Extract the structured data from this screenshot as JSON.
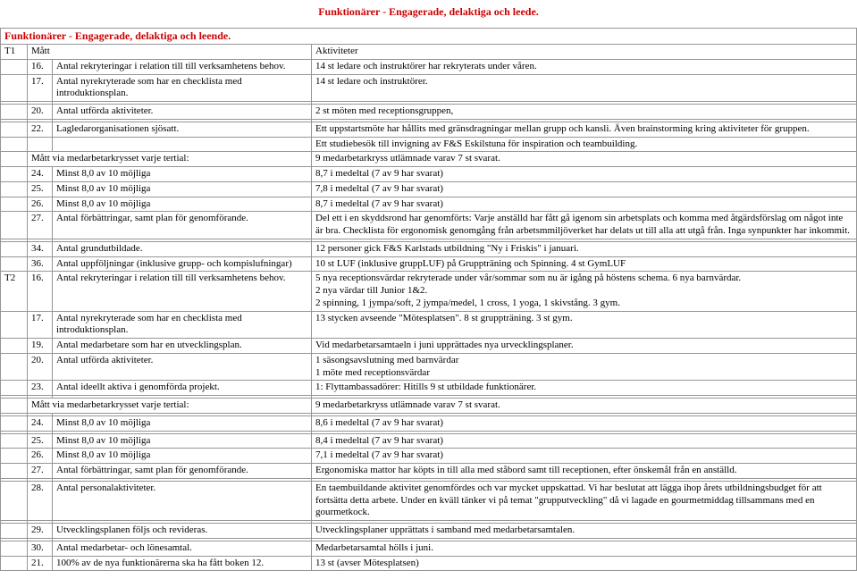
{
  "page_title": "Funktionärer - Engagerade, delaktiga och leede.",
  "section_header": "Funktionärer - Engagerade, delaktiga och leende.",
  "t_labels": {
    "t1": "T1",
    "t2": "T2"
  },
  "headers": {
    "matt": "Mått",
    "aktiviteter": "Aktiviteter"
  },
  "rows": {
    "r16": {
      "n": "16.",
      "m": "Antal rekryteringar i relation till till verksamhetens behov.",
      "a": "14 st  ledare och instruktörer har rekryterats under våren."
    },
    "r17": {
      "n": "17.",
      "m": "Antal nyrekryterade som har en checklista med introduktionsplan.",
      "a": "14 st  ledare och instruktörer."
    },
    "r20": {
      "n": "20.",
      "m": "Antal utförda aktiviteter.",
      "a": "2 st möten med receptionsgruppen,"
    },
    "r22": {
      "n": "22.",
      "m": "Lagledarorganisationen sjösatt.",
      "a": "Ett uppstartsmöte har hållits med gränsdragningar mellan grupp och kansli. Även brainstorming kring aktiviteter för gruppen."
    },
    "r22b": {
      "a": "Ett studiebesök till invigning av F&S Eskilstuna för inspiration och teambuilding."
    },
    "rMt1": {
      "m": "Mått via medarbetarkrysset varje tertial:",
      "a": "9 medarbetarkryss utlämnade varav 7 st svarat."
    },
    "r24a": {
      "n": "24.",
      "m": "Minst 8,0 av 10 möjliga",
      "a": "8,7 i medeltal (7 av 9 har svarat)"
    },
    "r25a": {
      "n": "25.",
      "m": "Minst 8,0 av 10 möjliga",
      "a": "7,8 i medeltal (7 av 9 har svarat)"
    },
    "r26a": {
      "n": "26.",
      "m": "Minst 8,0 av 10 möjliga",
      "a": "8,7 i medeltal (7 av 9 har svarat)"
    },
    "r27a": {
      "n": "27.",
      "m": "Antal förbättringar, samt plan för genomförande.",
      "a": "Del ett i en skyddsrond har genomförts: Varje anställd har fått gå igenom sin arbetsplats och komma med åtgärdsförslag om något inte är bra. Checklista för ergonomisk genomgång från arbetsmmiljöverket har delats ut till alla att utgå från. Inga synpunkter har inkommit."
    },
    "r34": {
      "n": "34.",
      "m": "Antal grundutbildade.",
      "a": "12 personer gick F&S Karlstads utbildning \"Ny i Friskis\" i januari."
    },
    "r36": {
      "n": "36.",
      "m": "Antal uppföljningar (inklusive grupp- och kompislufningar)",
      "a": "10 st LUF (inklusive gruppLUF) på Gruppträning och Spinning. 4 st GymLUF"
    },
    "r16b": {
      "n": "16.",
      "m": "Antal rekryteringar i relation till till verksamhetens behov.",
      "a": "5 nya receptionsvärdar rekryterade under vår/sommar som nu är igång på höstens schema. 6 nya barnvärdar.\n2 nya värdar till Junior 1&2.\n2 spinning, 1 jympa/soft, 2 jympa/medel, 1 cross, 1 yoga, 1 skivstång. 3 gym."
    },
    "r17b": {
      "n": "17.",
      "m": "Antal nyrekryterade som har en checklista med introduktionsplan.",
      "a": "13 stycken avseende \"Mötesplatsen\". 8 st gruppträning. 3 st gym."
    },
    "r19": {
      "n": "19.",
      "m": "Antal medarbetare som har en utvecklingsplan.",
      "a": "Vid medarbetarsamtaeln i juni upprättades nya urvecklingsplaner."
    },
    "r20b": {
      "n": "20.",
      "m": "Antal utförda aktiviteter.",
      "a": "1 säsongsavslutning med barnvärdar\n1 möte med receptionsvärdar"
    },
    "r23": {
      "n": "23.",
      "m": "Antal ideellt aktiva i genomförda projekt.",
      "a": "1: Flyttambassadörer: Hitills 9 st utbildade funktionärer."
    },
    "rMt2": {
      "m": "Mått via medarbetarkrysset varje tertial:",
      "a": "9 medarbetarkryss utlämnade varav 7 st svarat."
    },
    "r24b": {
      "n": "24.",
      "m": "Minst 8,0 av 10 möjliga",
      "a": "8,6 i medeltal (7 av 9 har svarat)"
    },
    "r25b": {
      "n": "25.",
      "m": "Minst 8,0 av 10 möjliga",
      "a": "8,4 i medeltal (7 av 9 har svarat)"
    },
    "r26b": {
      "n": "26.",
      "m": "Minst 8,0 av 10 möjliga",
      "a": "7,1 i medeltal (7 av 9 har svarat)"
    },
    "r27b": {
      "n": "27.",
      "m": "Antal förbättringar, samt plan för genomförande.",
      "a": "Ergonomiska mattor har köpts in till alla med ståbord samt till receptionen, efter önskemål från en anställd."
    },
    "r28": {
      "n": "28.",
      "m": "Antal personalaktiviteter.",
      "a": "En taembuildande aktivitet genomfördes och var mycket uppskattad. Vi har beslutat att lägga ihop årets utbildningsbudget för att fortsätta detta arbete. Under en kväll tänker vi på temat \"grupputveckling\" då vi lagade en gourmetmiddag tillsammans med en gourmetkock."
    },
    "r29": {
      "n": "29.",
      "m": "Utvecklingsplanen följs och revideras.",
      "a": "Utvecklingsplaner upprättats i samband med medarbetarsamtalen."
    },
    "r30": {
      "n": "30.",
      "m": "Antal medarbetar- och lönesamtal.",
      "a": "Medarbetarsamtal hölls i juni."
    },
    "r21": {
      "n": "21.",
      "m": "100% av de nya funktionärerna ska ha fått boken 12.",
      "a": "13 st (avser Mötesplatsen)"
    }
  }
}
